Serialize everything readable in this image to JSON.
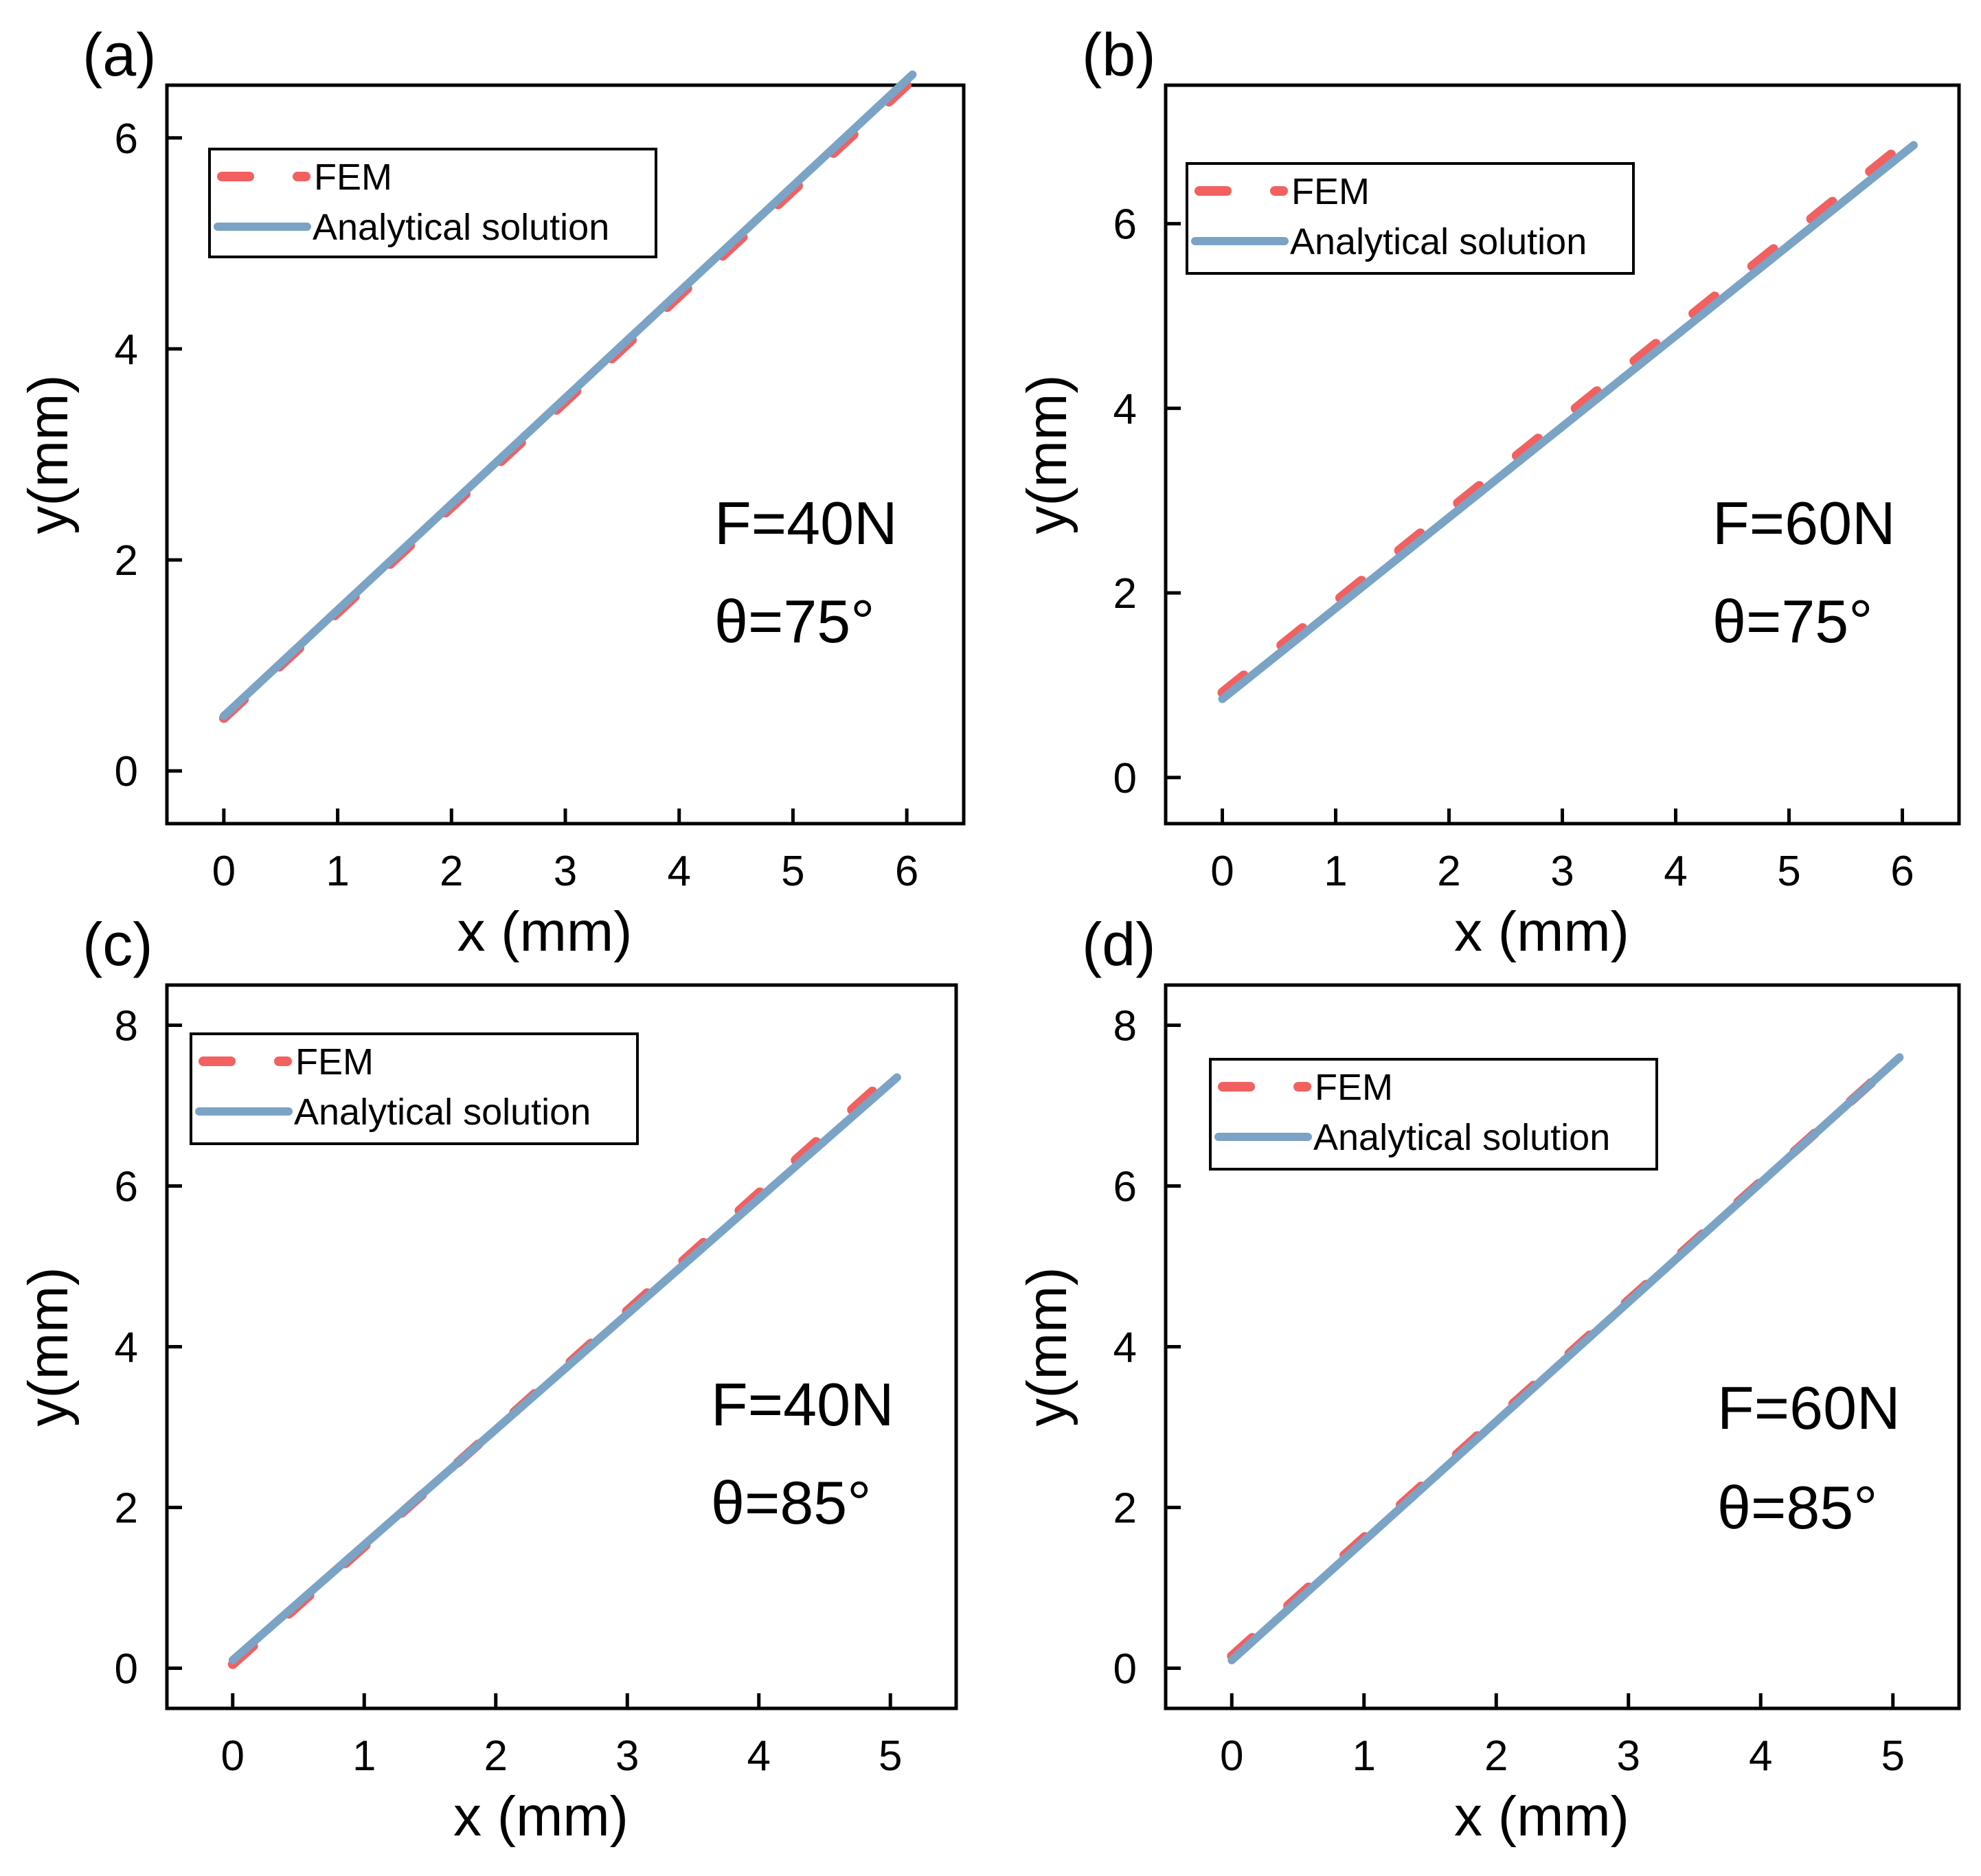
{
  "colors": {
    "fem": "#f26060",
    "analytical": "#7ba3c5",
    "axis": "#000000"
  },
  "chart_data": [
    {
      "type": "line",
      "panel_label": "(a)",
      "xlabel": "x (mm)",
      "ylabel": "y(mm)",
      "xlim": [
        -0.5,
        6.5
      ],
      "ylim": [
        -0.5,
        6.5
      ],
      "xticks": [
        0,
        1,
        2,
        3,
        4,
        5,
        6
      ],
      "yticks": [
        0,
        2,
        4,
        6
      ],
      "annotations": [
        "F=40N",
        "θ=75°"
      ],
      "legend": {
        "position": "top-left",
        "entries": [
          "FEM",
          "Analytical solution"
        ]
      },
      "series": [
        {
          "name": "FEM",
          "style": "dashed",
          "x": [
            0,
            6.0
          ],
          "y": [
            0.5,
            6.5
          ]
        },
        {
          "name": "Analytical solution",
          "style": "solid",
          "x": [
            0,
            6.05
          ],
          "y": [
            0.52,
            6.6
          ]
        }
      ]
    },
    {
      "type": "line",
      "panel_label": "(b)",
      "xlabel": "x (mm)",
      "ylabel": "y(mm)",
      "xlim": [
        -0.5,
        6.5
      ],
      "ylim": [
        -0.5,
        7.5
      ],
      "xticks": [
        0,
        1,
        2,
        3,
        4,
        5,
        6
      ],
      "yticks": [
        0,
        2,
        4,
        6
      ],
      "annotations": [
        "F=60N",
        "θ=75°"
      ],
      "legend": {
        "position": "top-left",
        "entries": [
          "FEM",
          "Analytical solution"
        ]
      },
      "series": [
        {
          "name": "FEM",
          "style": "dashed",
          "x": [
            0,
            5.9
          ],
          "y": [
            0.92,
            6.75
          ]
        },
        {
          "name": "Analytical solution",
          "style": "solid",
          "x": [
            0,
            6.1
          ],
          "y": [
            0.85,
            6.85
          ]
        }
      ]
    },
    {
      "type": "line",
      "panel_label": "(c)",
      "xlabel": "x (mm)",
      "ylabel": "y(mm)",
      "xlim": [
        -0.5,
        5.5
      ],
      "ylim": [
        -0.5,
        8.5
      ],
      "xticks": [
        0,
        1,
        2,
        3,
        4,
        5
      ],
      "yticks": [
        0,
        2,
        4,
        6,
        8
      ],
      "annotations": [
        "F=40N",
        "θ=85°"
      ],
      "legend": {
        "position": "top-left",
        "entries": [
          "FEM",
          "Analytical solution"
        ]
      },
      "series": [
        {
          "name": "FEM",
          "style": "dashed",
          "x": [
            0,
            5.05
          ],
          "y": [
            0.05,
            7.45
          ]
        },
        {
          "name": "Analytical solution",
          "style": "solid",
          "x": [
            0,
            5.05
          ],
          "y": [
            0.1,
            7.35
          ]
        }
      ]
    },
    {
      "type": "line",
      "panel_label": "(d)",
      "xlabel": "x (mm)",
      "ylabel": "y(mm)",
      "xlim": [
        -0.5,
        5.5
      ],
      "ylim": [
        -0.5,
        8.5
      ],
      "xticks": [
        0,
        1,
        2,
        3,
        4,
        5
      ],
      "yticks": [
        0,
        2,
        4,
        6,
        8
      ],
      "annotations": [
        "F=60N",
        "θ=85°"
      ],
      "legend": {
        "position": "top-left",
        "entries": [
          "FEM",
          "Analytical solution"
        ]
      },
      "series": [
        {
          "name": "FEM",
          "style": "dashed",
          "x": [
            0,
            5.05
          ],
          "y": [
            0.15,
            7.6
          ]
        },
        {
          "name": "Analytical solution",
          "style": "solid",
          "x": [
            0,
            5.05
          ],
          "y": [
            0.1,
            7.6
          ]
        }
      ]
    }
  ]
}
